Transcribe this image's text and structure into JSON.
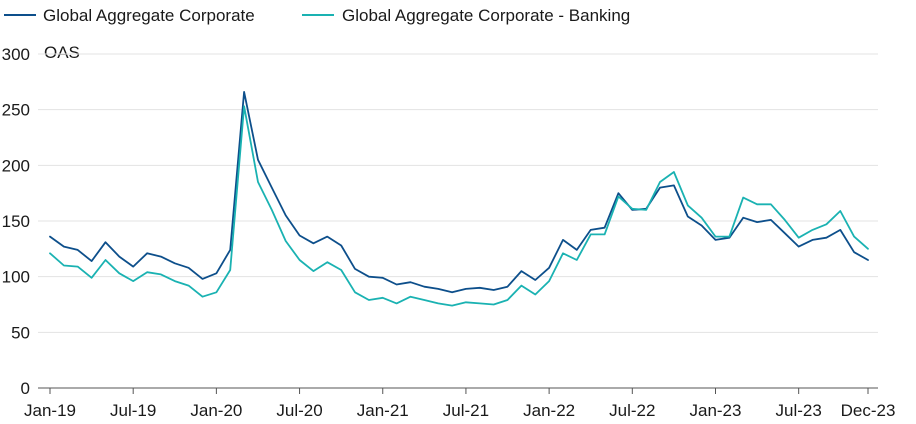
{
  "chart_data": {
    "type": "line",
    "ylabel": "OAS",
    "ylim": [
      0,
      300
    ],
    "yticks": [
      0,
      50,
      100,
      150,
      200,
      250,
      300
    ],
    "xlim": [
      "2019-01",
      "2023-12"
    ],
    "xticks": [
      {
        "date": "2019-01",
        "label": "Jan-19"
      },
      {
        "date": "2019-07",
        "label": "Jul-19"
      },
      {
        "date": "2020-01",
        "label": "Jan-20"
      },
      {
        "date": "2020-07",
        "label": "Jul-20"
      },
      {
        "date": "2021-01",
        "label": "Jan-21"
      },
      {
        "date": "2021-07",
        "label": "Jul-21"
      },
      {
        "date": "2022-01",
        "label": "Jan-22"
      },
      {
        "date": "2022-07",
        "label": "Jul-22"
      },
      {
        "date": "2023-01",
        "label": "Jan-23"
      },
      {
        "date": "2023-07",
        "label": "Jul-23"
      },
      {
        "date": "2023-12",
        "label": "Dec-23"
      }
    ],
    "grid": "horizontal",
    "legend": "top-left",
    "x": [
      "2019-01",
      "2019-02",
      "2019-03",
      "2019-04",
      "2019-05",
      "2019-06",
      "2019-07",
      "2019-08",
      "2019-09",
      "2019-10",
      "2019-11",
      "2019-12",
      "2020-01",
      "2020-02",
      "2020-03",
      "2020-04",
      "2020-05",
      "2020-06",
      "2020-07",
      "2020-08",
      "2020-09",
      "2020-10",
      "2020-11",
      "2020-12",
      "2021-01",
      "2021-02",
      "2021-03",
      "2021-04",
      "2021-05",
      "2021-06",
      "2021-07",
      "2021-08",
      "2021-09",
      "2021-10",
      "2021-11",
      "2021-12",
      "2022-01",
      "2022-02",
      "2022-03",
      "2022-04",
      "2022-05",
      "2022-06",
      "2022-07",
      "2022-08",
      "2022-09",
      "2022-10",
      "2022-11",
      "2022-12",
      "2023-01",
      "2023-02",
      "2023-03",
      "2023-04",
      "2023-05",
      "2023-06",
      "2023-07",
      "2023-08",
      "2023-09",
      "2023-10",
      "2023-11",
      "2023-12"
    ],
    "series": [
      {
        "name": "Global Aggregate Corporate",
        "color": "#0d4f8b",
        "values": [
          136,
          127,
          124,
          114,
          131,
          118,
          109,
          121,
          118,
          112,
          108,
          98,
          103,
          124,
          266,
          205,
          180,
          155,
          137,
          130,
          136,
          128,
          107,
          100,
          99,
          93,
          95,
          91,
          89,
          86,
          89,
          90,
          88,
          91,
          105,
          97,
          108,
          133,
          124,
          142,
          144,
          175,
          160,
          161,
          180,
          182,
          154,
          146,
          133,
          135,
          153,
          149,
          151,
          139,
          127,
          133,
          135,
          142,
          122,
          115
        ]
      },
      {
        "name": "Global Aggregate Corporate - Banking",
        "color": "#1ab2b2",
        "values": [
          121,
          110,
          109,
          99,
          115,
          103,
          96,
          104,
          102,
          96,
          92,
          82,
          86,
          106,
          253,
          185,
          160,
          132,
          115,
          105,
          113,
          106,
          86,
          79,
          81,
          76,
          82,
          79,
          76,
          74,
          77,
          76,
          75,
          79,
          92,
          84,
          96,
          121,
          115,
          138,
          138,
          172,
          161,
          160,
          185,
          194,
          164,
          153,
          136,
          136,
          171,
          165,
          165,
          151,
          135,
          142,
          147,
          159,
          136,
          125
        ]
      }
    ]
  }
}
